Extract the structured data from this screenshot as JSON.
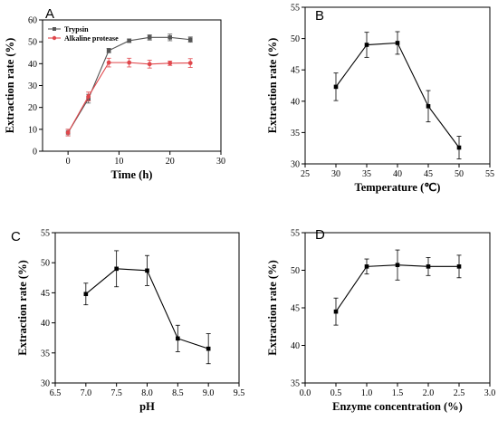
{
  "chart_data": [
    {
      "panel": "A",
      "type": "line",
      "xlabel": "Time (h)",
      "ylabel": "Extraction rate (%)",
      "xlim": [
        -5,
        30
      ],
      "ylim": [
        0,
        60
      ],
      "xticks": [
        0,
        10,
        20,
        30
      ],
      "yticks": [
        0,
        10,
        20,
        30,
        40,
        50,
        60
      ],
      "legend": "top-left",
      "series": [
        {
          "name": "Trypsin",
          "color": "#555555",
          "marker": "square",
          "x": [
            0,
            4,
            8,
            12,
            16,
            20,
            24
          ],
          "y": [
            8.5,
            24,
            46,
            50.5,
            52,
            52,
            51
          ],
          "err": [
            1.5,
            2,
            1,
            0.8,
            1.2,
            1.5,
            1.2
          ]
        },
        {
          "name": "Alkaline protease",
          "color": "#e0474c",
          "marker": "circle",
          "x": [
            0,
            4,
            8,
            12,
            16,
            20,
            24
          ],
          "y": [
            8.5,
            25,
            40.5,
            40.5,
            39.8,
            40.2,
            40.3
          ],
          "err": [
            1.5,
            2,
            2,
            2,
            1.8,
            1,
            2
          ]
        }
      ]
    },
    {
      "panel": "B",
      "type": "line",
      "xlabel": "Temperature (℃)",
      "ylabel": "Extraction rate (%)",
      "xlim": [
        25,
        55
      ],
      "ylim": [
        30,
        55
      ],
      "xticks": [
        25,
        30,
        35,
        40,
        45,
        50,
        55
      ],
      "yticks": [
        30,
        35,
        40,
        45,
        50,
        55
      ],
      "series": [
        {
          "color": "#000000",
          "marker": "square",
          "x": [
            30,
            35,
            40,
            45,
            50
          ],
          "y": [
            42.3,
            49,
            49.3,
            39.2,
            32.6
          ],
          "err": [
            2.2,
            2,
            1.8,
            2.5,
            1.8
          ]
        }
      ]
    },
    {
      "panel": "C",
      "type": "line",
      "xlabel": "pH",
      "ylabel": "Extraction rate (%)",
      "xlim": [
        6.5,
        9.5
      ],
      "ylim": [
        30,
        55
      ],
      "xticks": [
        6.5,
        7.0,
        7.5,
        8.0,
        8.5,
        9.0,
        9.5
      ],
      "yticks": [
        30,
        35,
        40,
        45,
        50,
        55
      ],
      "series": [
        {
          "color": "#000000",
          "marker": "square",
          "x": [
            7.0,
            7.5,
            8.0,
            8.5,
            9.0
          ],
          "y": [
            44.8,
            49,
            48.7,
            37.4,
            35.7
          ],
          "err": [
            1.8,
            3,
            2.5,
            2.2,
            2.5
          ]
        }
      ]
    },
    {
      "panel": "D",
      "type": "line",
      "xlabel": "Enzyme concentration (%)",
      "ylabel": "Extraction rate (%)",
      "xlim": [
        0.0,
        3.0
      ],
      "ylim": [
        35,
        55
      ],
      "xticks": [
        0.0,
        0.5,
        1.0,
        1.5,
        2.0,
        2.5,
        3.0
      ],
      "yticks": [
        35,
        40,
        45,
        50,
        55
      ],
      "series": [
        {
          "color": "#000000",
          "marker": "square",
          "x": [
            0.5,
            1.0,
            1.5,
            2.0,
            2.5
          ],
          "y": [
            44.5,
            50.5,
            50.7,
            50.5,
            50.5
          ],
          "err": [
            1.8,
            1,
            2,
            1.2,
            1.5
          ]
        }
      ]
    }
  ]
}
